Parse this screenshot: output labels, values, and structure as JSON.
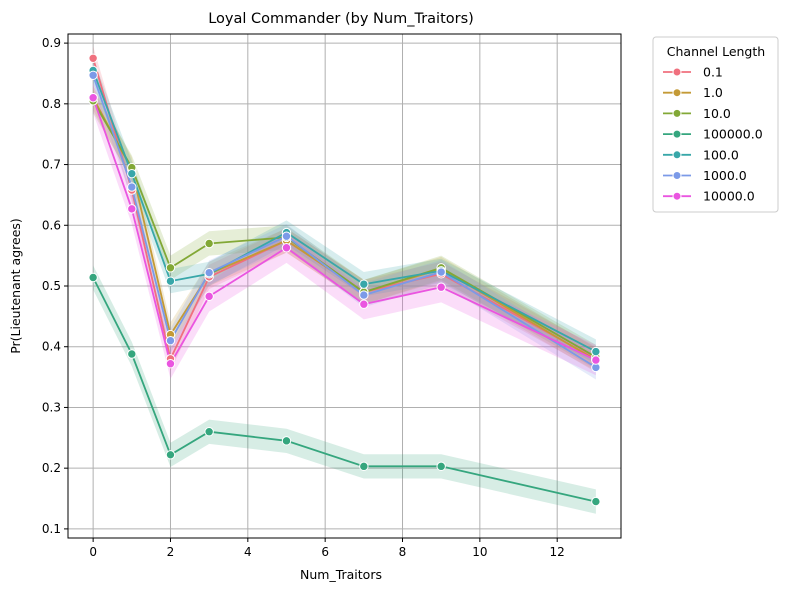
{
  "chart_data": {
    "type": "line",
    "title": "Loyal Commander (by Num_Traitors)",
    "xlabel": "Num_Traitors",
    "ylabel": "Pr(Lieutenant agrees)",
    "xlim": [
      -0.65,
      13.65
    ],
    "ylim": [
      0.085,
      0.915
    ],
    "xticks": [
      0,
      2,
      4,
      6,
      8,
      10,
      12
    ],
    "yticks": [
      0.1,
      0.2,
      0.3,
      0.4,
      0.5,
      0.6,
      0.7,
      0.8,
      0.9
    ],
    "grid": true,
    "legend": {
      "title": "Channel Length",
      "placement": "outside-top-right"
    },
    "x": [
      0,
      1,
      2,
      3,
      5,
      7,
      9,
      13
    ],
    "series": [
      {
        "name": "0.1",
        "color": "#f0707e",
        "values": [
          0.875,
          0.658,
          0.38,
          0.515,
          0.575,
          0.49,
          0.52,
          0.38
        ],
        "band": 0.02
      },
      {
        "name": "1.0",
        "color": "#c49a36",
        "values": [
          0.81,
          0.692,
          0.42,
          0.52,
          0.575,
          0.49,
          0.528,
          0.378
        ],
        "band": 0.02
      },
      {
        "name": "10.0",
        "color": "#82a836",
        "values": [
          0.805,
          0.695,
          0.53,
          0.57,
          0.58,
          0.49,
          0.53,
          0.383
        ],
        "band": 0.02
      },
      {
        "name": "100000.0",
        "color": "#35a67e",
        "values": [
          0.514,
          0.388,
          0.222,
          0.26,
          0.245,
          0.203,
          0.203,
          0.145
        ],
        "band": 0.02
      },
      {
        "name": "100.0",
        "color": "#38a7a9",
        "values": [
          0.855,
          0.685,
          0.508,
          0.52,
          0.588,
          0.503,
          0.525,
          0.392
        ],
        "band": 0.02
      },
      {
        "name": "1000.0",
        "color": "#7b9ae8",
        "values": [
          0.847,
          0.663,
          0.41,
          0.522,
          0.582,
          0.485,
          0.523,
          0.366
        ],
        "band": 0.02
      },
      {
        "name": "10000.0",
        "color": "#ea55e0",
        "values": [
          0.81,
          0.627,
          0.372,
          0.483,
          0.563,
          0.47,
          0.498,
          0.378
        ],
        "band": 0.025
      }
    ]
  }
}
